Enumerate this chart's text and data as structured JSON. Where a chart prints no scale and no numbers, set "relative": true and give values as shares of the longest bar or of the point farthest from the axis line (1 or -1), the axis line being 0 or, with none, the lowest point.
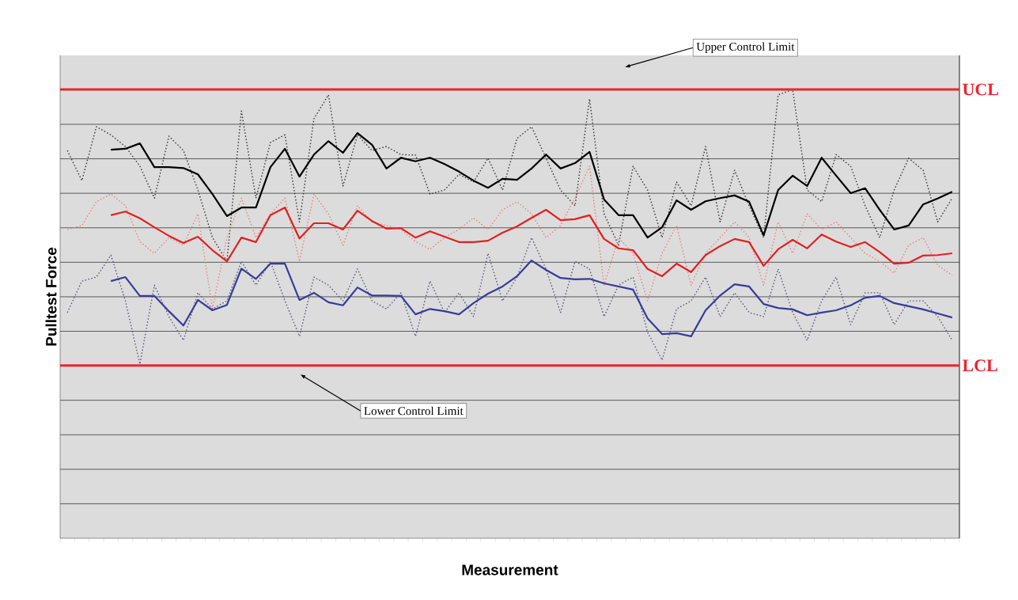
{
  "chart_data": {
    "type": "line",
    "relative": true,
    "xlabel": "Measurement",
    "ylabel": "Pulltest Force",
    "categories": [
      null,
      null,
      null,
      null,
      null,
      null,
      null,
      null,
      null,
      null,
      null,
      null,
      null,
      null,
      null,
      null,
      null,
      null,
      null,
      null,
      null,
      null,
      null,
      null,
      null,
      null,
      null,
      null,
      null,
      null,
      null,
      null,
      null,
      null,
      null,
      null,
      null,
      null,
      null,
      null,
      null,
      null,
      null,
      null,
      null,
      null,
      null,
      null,
      null,
      null,
      null,
      null,
      null,
      null,
      null,
      null,
      null,
      null,
      null,
      null,
      null,
      null
    ],
    "grid": "y",
    "marker": "none",
    "line_style": "solid",
    "series": [
      {
        "color": "#333333",
        "line_style": "dotted",
        "values": [
          0.864,
          0.797,
          0.917,
          0.899,
          0.873,
          0.829,
          0.758,
          0.896,
          0.864,
          0.776,
          0.67,
          0.617,
          0.952,
          0.758,
          0.882,
          0.899,
          0.705,
          0.935,
          0.988,
          0.785,
          0.899,
          0.864,
          0.873,
          0.855,
          0.854,
          0.767,
          0.776,
          0.811,
          0.794,
          0.847,
          0.776,
          0.891,
          0.917,
          0.847,
          0.776,
          0.741,
          0.979,
          0.723,
          0.653,
          0.829,
          0.776,
          0.67,
          0.794,
          0.741,
          0.873,
          0.705,
          0.82,
          0.741,
          0.67,
          0.988,
          1.0,
          0.776,
          0.75,
          0.855,
          0.829,
          0.741,
          0.67,
          0.776,
          0.847,
          0.82,
          0.705,
          0.758
        ]
      },
      {
        "color": "#e88080",
        "line_style": "dotted",
        "values": [
          0.688,
          0.697,
          0.75,
          0.767,
          0.741,
          0.661,
          0.635,
          0.67,
          0.653,
          0.723,
          0.511,
          0.67,
          0.758,
          0.67,
          0.723,
          0.758,
          0.617,
          0.767,
          0.723,
          0.653,
          0.741,
          0.705,
          0.697,
          0.688,
          0.661,
          0.644,
          0.67,
          0.688,
          0.714,
          0.688,
          0.732,
          0.75,
          0.723,
          0.67,
          0.697,
          0.758,
          0.829,
          0.564,
          0.67,
          0.635,
          0.529,
          0.635,
          0.697,
          0.564,
          0.635,
          0.67,
          0.705,
          0.67,
          0.564,
          0.705,
          0.635,
          0.723,
          0.688,
          0.705,
          0.67,
          0.635,
          0.617,
          0.591,
          0.653,
          0.67,
          0.608,
          0.586
        ]
      },
      {
        "color": "#555577",
        "line_style": "dotted",
        "values": [
          0.503,
          0.573,
          0.582,
          0.631,
          0.529,
          0.388,
          0.564,
          0.494,
          0.441,
          0.547,
          0.511,
          0.529,
          0.617,
          0.564,
          0.617,
          0.529,
          0.45,
          0.582,
          0.564,
          0.529,
          0.6,
          0.529,
          0.511,
          0.547,
          0.45,
          0.573,
          0.503,
          0.547,
          0.494,
          0.635,
          0.529,
          0.582,
          0.67,
          0.6,
          0.503,
          0.617,
          0.6,
          0.494,
          0.564,
          0.582,
          0.459,
          0.397,
          0.511,
          0.529,
          0.582,
          0.494,
          0.547,
          0.503,
          0.494,
          0.6,
          0.503,
          0.441,
          0.529,
          0.582,
          0.476,
          0.547,
          0.547,
          0.476,
          0.529,
          0.529,
          0.494,
          0.441
        ]
      },
      {
        "color": "#000000",
        "values": [
          null,
          null,
          null,
          0.866,
          0.868,
          0.88,
          0.827,
          0.827,
          0.825,
          0.811,
          0.767,
          0.718,
          0.737,
          0.737,
          0.827,
          0.868,
          0.806,
          0.855,
          0.885,
          0.859,
          0.903,
          0.877,
          0.824,
          0.848,
          0.84,
          0.848,
          0.834,
          0.817,
          0.797,
          0.781,
          0.801,
          0.799,
          0.824,
          0.855,
          0.824,
          0.836,
          0.861,
          0.755,
          0.72,
          0.72,
          0.67,
          0.693,
          0.753,
          0.732,
          0.751,
          0.758,
          0.764,
          0.75,
          0.675,
          0.776,
          0.808,
          0.785,
          0.848,
          0.808,
          0.769,
          0.78,
          0.732,
          0.688,
          0.697,
          0.744,
          0.757,
          0.772
        ]
      },
      {
        "color": "#e02020",
        "values": [
          null,
          null,
          null,
          0.72,
          0.728,
          0.713,
          0.693,
          0.674,
          0.658,
          0.672,
          0.642,
          0.617,
          0.67,
          0.66,
          0.72,
          0.737,
          0.668,
          0.702,
          0.702,
          0.688,
          0.73,
          0.707,
          0.69,
          0.691,
          0.67,
          0.684,
          0.672,
          0.66,
          0.66,
          0.663,
          0.681,
          0.695,
          0.714,
          0.732,
          0.709,
          0.711,
          0.72,
          0.667,
          0.646,
          0.642,
          0.6,
          0.584,
          0.612,
          0.593,
          0.631,
          0.651,
          0.667,
          0.66,
          0.607,
          0.644,
          0.665,
          0.646,
          0.677,
          0.661,
          0.649,
          0.66,
          0.638,
          0.612,
          0.614,
          0.63,
          0.631,
          0.635
        ]
      },
      {
        "color": "#3a3a9a",
        "values": [
          null,
          null,
          null,
          0.573,
          0.582,
          0.54,
          0.54,
          0.506,
          0.474,
          0.531,
          0.508,
          0.52,
          0.601,
          0.578,
          0.612,
          0.612,
          0.531,
          0.547,
          0.526,
          0.519,
          0.559,
          0.541,
          0.541,
          0.54,
          0.499,
          0.511,
          0.506,
          0.499,
          0.524,
          0.545,
          0.561,
          0.584,
          0.619,
          0.598,
          0.58,
          0.577,
          0.578,
          0.568,
          0.561,
          0.554,
          0.49,
          0.455,
          0.457,
          0.45,
          0.508,
          0.541,
          0.566,
          0.561,
          0.522,
          0.513,
          0.51,
          0.497,
          0.503,
          0.508,
          0.519,
          0.536,
          0.54,
          0.524,
          0.517,
          0.51,
          0.501,
          0.492
        ]
      }
    ],
    "ref_lines": [
      {
        "axis": "y",
        "value": 1.0,
        "label": "UCL",
        "color": "#e8262d"
      },
      {
        "axis": "y",
        "value": 0.385,
        "label": "LCL",
        "color": "#e8262d"
      }
    ],
    "annotations": [
      "Upper Control Limit",
      "Lower Control Limit"
    ]
  }
}
